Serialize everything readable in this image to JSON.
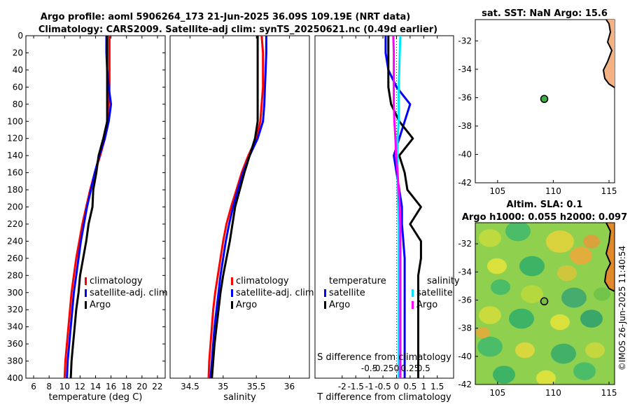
{
  "title_line1": "Argo profile: aoml 5906264_173 21-Jun-2025 36.09S 109.19E (NRT data)",
  "title_line2": "Climatology: CARS2009. Satellite-adj clim: synTS_20250621.nc (0.49d earlier)",
  "side_label": "©IMOS 26-Jun-2025 11:40:54",
  "colors": {
    "climatology": "#ff0000",
    "satellite": "#0000ff",
    "argo": "#000000",
    "sat_salinity": "#00e5ff",
    "argo_salinity": "#ff00ff"
  },
  "chart_data": [
    {
      "type": "line",
      "id": "temperature",
      "xlabel": "temperature (deg C)",
      "xlim": [
        5,
        23
      ],
      "xticks": [
        6,
        8,
        10,
        12,
        14,
        16,
        18,
        20,
        22
      ],
      "ylim": [
        0,
        400
      ],
      "yticks": [
        0,
        20,
        40,
        60,
        80,
        100,
        120,
        140,
        160,
        180,
        200,
        220,
        240,
        260,
        280,
        300,
        320,
        340,
        360,
        380,
        400
      ],
      "ylabel": "",
      "legend": [
        "climatology",
        "satellite-adj. clim",
        "Argo"
      ],
      "series": [
        {
          "name": "climatology",
          "color": "climatology",
          "x": [
            15.8,
            15.8,
            15.8,
            15.8,
            15.7,
            15.5,
            15.2,
            14.6,
            13.9,
            13.3,
            12.8,
            12.3,
            11.9,
            11.5,
            11.2,
            10.9,
            10.7,
            10.5,
            10.3,
            10.1,
            10.0
          ],
          "y": [
            0,
            20,
            40,
            60,
            80,
            100,
            120,
            140,
            160,
            180,
            200,
            220,
            240,
            260,
            280,
            300,
            320,
            340,
            360,
            380,
            400
          ]
        },
        {
          "name": "satellite-adj. clim",
          "color": "satellite",
          "x": [
            15.4,
            15.4,
            15.5,
            15.7,
            16.0,
            15.7,
            15.2,
            14.5,
            13.9,
            13.4,
            12.9,
            12.5,
            12.1,
            11.8,
            11.5,
            11.2,
            11.0,
            10.8,
            10.6,
            10.4,
            10.3
          ],
          "y": [
            0,
            20,
            40,
            60,
            80,
            100,
            120,
            140,
            160,
            180,
            200,
            220,
            240,
            260,
            280,
            300,
            320,
            340,
            360,
            380,
            400
          ]
        },
        {
          "name": "Argo",
          "color": "argo",
          "x": [
            15.5,
            15.5,
            15.5,
            15.5,
            15.5,
            15.5,
            15.0,
            14.4,
            14.1,
            13.7,
            13.6,
            13.1,
            12.8,
            12.4,
            12.0,
            11.8,
            11.5,
            11.3,
            11.1,
            10.9,
            10.8
          ],
          "y": [
            0,
            20,
            40,
            60,
            80,
            100,
            120,
            140,
            160,
            180,
            200,
            220,
            240,
            260,
            280,
            300,
            320,
            340,
            360,
            380,
            400
          ]
        }
      ]
    },
    {
      "type": "line",
      "id": "salinity",
      "xlabel": "salinity",
      "xlim": [
        34.2,
        36.3
      ],
      "xticks": [
        34.5,
        35,
        35.5,
        36
      ],
      "xticklabels": [
        "34.5",
        "35",
        "35.5",
        "36"
      ],
      "ylim": [
        0,
        400
      ],
      "legend": [
        "climatology",
        "satellite-adj. clim",
        "Argo"
      ],
      "series": [
        {
          "name": "climatology",
          "color": "climatology",
          "x": [
            35.58,
            35.6,
            35.6,
            35.6,
            35.58,
            35.56,
            35.5,
            35.38,
            35.28,
            35.2,
            35.12,
            35.05,
            35.0,
            34.96,
            34.92,
            34.88,
            34.85,
            34.83,
            34.81,
            34.79,
            34.78
          ],
          "y": [
            0,
            20,
            40,
            60,
            80,
            100,
            120,
            140,
            160,
            180,
            200,
            220,
            240,
            260,
            280,
            300,
            320,
            340,
            360,
            380,
            400
          ]
        },
        {
          "name": "satellite-adj. clim",
          "color": "satellite",
          "x": [
            35.65,
            35.65,
            35.64,
            35.63,
            35.62,
            35.6,
            35.52,
            35.4,
            35.3,
            35.22,
            35.15,
            35.09,
            35.04,
            35.0,
            34.96,
            34.93,
            34.9,
            34.87,
            34.85,
            34.83,
            34.81
          ],
          "y": [
            0,
            20,
            40,
            60,
            80,
            100,
            120,
            140,
            160,
            180,
            200,
            220,
            240,
            260,
            280,
            300,
            320,
            340,
            360,
            380,
            400
          ]
        },
        {
          "name": "Argo",
          "color": "argo",
          "x": [
            35.52,
            35.52,
            35.52,
            35.52,
            35.52,
            35.52,
            35.48,
            35.4,
            35.32,
            35.25,
            35.18,
            35.14,
            35.1,
            35.05,
            35.0,
            34.96,
            34.93,
            34.9,
            34.87,
            34.85,
            34.83
          ],
          "y": [
            0,
            20,
            40,
            60,
            80,
            100,
            120,
            140,
            160,
            180,
            200,
            220,
            240,
            260,
            280,
            300,
            320,
            340,
            360,
            380,
            400
          ]
        }
      ]
    },
    {
      "type": "line",
      "id": "difference",
      "xlabel": "T difference from climatology",
      "xlim": [
        -3,
        2.1
      ],
      "xticks": [
        -2,
        -1.5,
        -1,
        -0.5,
        0,
        0.5,
        1,
        1.5
      ],
      "xticklabels": [
        "-2",
        "-1.5",
        "-1",
        "-0.5",
        "0",
        "0.5",
        "1",
        "1.5"
      ],
      "secondary_xlabel": "S difference from climatology",
      "secondary_ticks": [
        -0.5,
        -0.25,
        0,
        0.25,
        0.5
      ],
      "secondary_ticklabels": [
        "-0.5",
        "-0.25",
        "0",
        "0.25",
        "0.5"
      ],
      "ylim": [
        0,
        400
      ],
      "legend_left_title": "temperature",
      "legend_right_title": "salinity",
      "legend_left": [
        "satellite",
        "Argo"
      ],
      "legend_right": [
        "satellite",
        "Argo"
      ],
      "series": [
        {
          "name": "temperature satellite",
          "color": "satellite",
          "x": [
            -0.4,
            -0.4,
            -0.3,
            0.0,
            0.5,
            0.3,
            0.1,
            -0.1,
            0.0,
            0.1,
            0.2,
            0.2,
            0.25,
            0.3,
            0.3,
            0.3,
            0.3,
            0.3,
            0.3,
            0.3,
            0.3
          ],
          "y": [
            0,
            20,
            40,
            60,
            80,
            100,
            120,
            140,
            160,
            180,
            200,
            220,
            240,
            260,
            280,
            300,
            320,
            340,
            360,
            380,
            400
          ]
        },
        {
          "name": "temperature Argo",
          "color": "argo",
          "x": [
            -0.3,
            -0.3,
            -0.3,
            -0.3,
            -0.2,
            0.1,
            0.6,
            0.1,
            0.3,
            0.4,
            0.9,
            0.5,
            0.9,
            0.9,
            0.8,
            0.8,
            0.8,
            0.8,
            0.8,
            0.8,
            0.8
          ],
          "y": [
            0,
            20,
            40,
            60,
            80,
            100,
            120,
            140,
            160,
            180,
            200,
            220,
            240,
            260,
            280,
            300,
            320,
            340,
            360,
            380,
            400
          ]
        },
        {
          "name": "salinity satellite",
          "color": "sat_salinity",
          "x": [
            0.07,
            0.06,
            0.05,
            0.04,
            0.04,
            0.04,
            0.02,
            0.02,
            0.02,
            0.02,
            0.03,
            0.04,
            0.04,
            0.04,
            0.04,
            0.04,
            0.04,
            0.04,
            0.04,
            0.04,
            0.04
          ],
          "y": [
            0,
            20,
            40,
            60,
            80,
            100,
            120,
            140,
            160,
            180,
            200,
            220,
            240,
            260,
            280,
            300,
            320,
            340,
            360,
            380,
            400
          ]
        },
        {
          "name": "salinity Argo",
          "color": "argo_salinity",
          "x": [
            -0.06,
            -0.05,
            -0.05,
            -0.05,
            -0.05,
            -0.04,
            -0.02,
            -0.01,
            0.02,
            0.04,
            0.06,
            0.07,
            0.07,
            0.07,
            0.07,
            0.07,
            0.07,
            0.07,
            0.07,
            0.07,
            0.07
          ],
          "y": [
            0,
            20,
            40,
            60,
            80,
            100,
            120,
            140,
            160,
            180,
            200,
            220,
            240,
            260,
            280,
            300,
            320,
            340,
            360,
            380,
            400
          ]
        }
      ]
    },
    {
      "type": "map",
      "id": "sst-map",
      "title": "sat. SST: NaN Argo: 15.6",
      "xlim": [
        103,
        115.5
      ],
      "ylim": [
        -42,
        -30.5
      ],
      "xticks": [
        105,
        110,
        115
      ],
      "yticks": [
        -32,
        -34,
        -36,
        -38,
        -40,
        -42
      ],
      "argo_position": {
        "lon": 109.19,
        "lat": -36.09
      }
    },
    {
      "type": "heatmap",
      "id": "sla-map",
      "title_line1": "Altim. SLA: 0.1",
      "title_line2": "Argo h1000: 0.055 h2000: 0.097",
      "xlim": [
        103,
        115.5
      ],
      "ylim": [
        -42,
        -30.5
      ],
      "xticks": [
        105,
        110,
        115
      ],
      "yticks": [
        -32,
        -34,
        -36,
        -38,
        -40,
        -42
      ],
      "argo_position": {
        "lon": 109.19,
        "lat": -36.09
      }
    }
  ]
}
